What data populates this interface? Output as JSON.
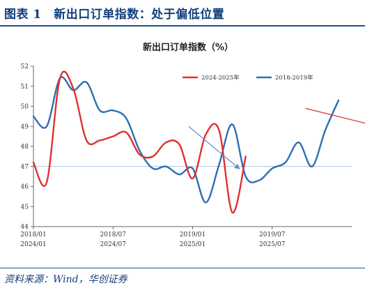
{
  "header": {
    "title": "图表 1　新出口订单指数：处于偏低位置"
  },
  "source": "资料来源：Wind，华创证券",
  "chart_data": {
    "type": "line",
    "title": "新出口订单指数（%）",
    "xlabel": "",
    "ylabel": "",
    "ylim": [
      44,
      52
    ],
    "yticks": [
      44,
      45,
      46,
      47,
      48,
      49,
      50,
      51,
      52
    ],
    "x_tick_labels_top": [
      "2018/01",
      "2018/07",
      "2019/01",
      "2019/07"
    ],
    "x_tick_labels_bottom": [
      "2024/01",
      "2024/07",
      "2025/01",
      "2025/07"
    ],
    "grid": false,
    "legend_position": "top-right",
    "colors": {
      "series_2024_2025": "#e03030",
      "series_2018_2019": "#2d6eb3",
      "reference_line": "#a8c4e0"
    },
    "reference_line": 47.0,
    "series": [
      {
        "name": "2024-2025年",
        "color": "#e03030",
        "values": [
          47.2,
          46.2,
          51.4,
          50.9,
          48.3,
          48.3,
          48.5,
          48.7,
          47.6,
          47.5,
          48.2,
          48.1,
          46.4,
          48.6,
          48.8,
          44.7,
          47.5
        ]
      },
      {
        "name": "2018-2019年",
        "color": "#2d6eb3",
        "values": [
          49.5,
          49.0,
          51.4,
          50.8,
          51.2,
          49.8,
          49.8,
          49.4,
          47.8,
          46.9,
          47.0,
          46.6,
          46.9,
          45.2,
          47.1,
          49.1,
          46.5,
          46.3,
          46.9,
          47.2,
          48.2,
          47.0,
          48.8,
          50.3
        ]
      }
    ],
    "annotations": [
      {
        "type": "arrow",
        "color": "#6a8fc8",
        "from": [
          11.7,
          49.0
        ],
        "to": [
          15.5,
          46.9
        ]
      },
      {
        "type": "arrow",
        "color": "#e03030",
        "from": [
          20.5,
          49.9
        ],
        "to": [
          27.8,
          48.7
        ]
      }
    ]
  }
}
